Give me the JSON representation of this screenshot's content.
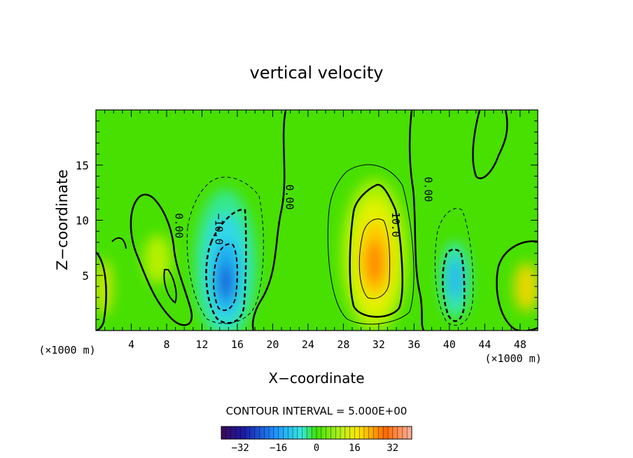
{
  "chart_data": {
    "type": "heatmap",
    "title": "vertical velocity",
    "xlabel": "X−coordinate",
    "ylabel": "Z−coordinate",
    "x_unit_left": "(×1000 m)",
    "x_unit_right": "(×1000 m)",
    "xlim": [
      0,
      50
    ],
    "ylim": [
      0,
      20
    ],
    "x_ticks": [
      4,
      8,
      12,
      16,
      20,
      24,
      28,
      32,
      36,
      40,
      44,
      48
    ],
    "y_ticks": [
      5,
      10,
      15
    ],
    "contour_interval_label": "CONTOUR INTERVAL = 5.000E+00",
    "contour_labels": [
      {
        "text": "0.00",
        "x": 9.0,
        "y": 9.5
      },
      {
        "text": "−10.0",
        "x": 13.5,
        "y": 9.2
      },
      {
        "text": "0.00",
        "x": 21.5,
        "y": 12.1
      },
      {
        "text": "10.0",
        "x": 33.5,
        "y": 9.6
      },
      {
        "text": "0.00",
        "x": 37.2,
        "y": 12.8
      }
    ],
    "colorbar": {
      "range": [
        -40,
        40
      ],
      "tick_values": [
        -32,
        -16,
        0,
        16,
        32
      ],
      "tick_labels": [
        "−32",
        "−16",
        "0",
        "16",
        "32"
      ]
    },
    "field_extrema": [
      {
        "kind": "updraft",
        "x": 31.5,
        "y": 6.5,
        "value": 28
      },
      {
        "kind": "downdraft",
        "x": 14.8,
        "y": 4.5,
        "value": -32
      },
      {
        "kind": "downdraft",
        "x": 40.5,
        "y": 4.5,
        "value": -18
      }
    ]
  }
}
